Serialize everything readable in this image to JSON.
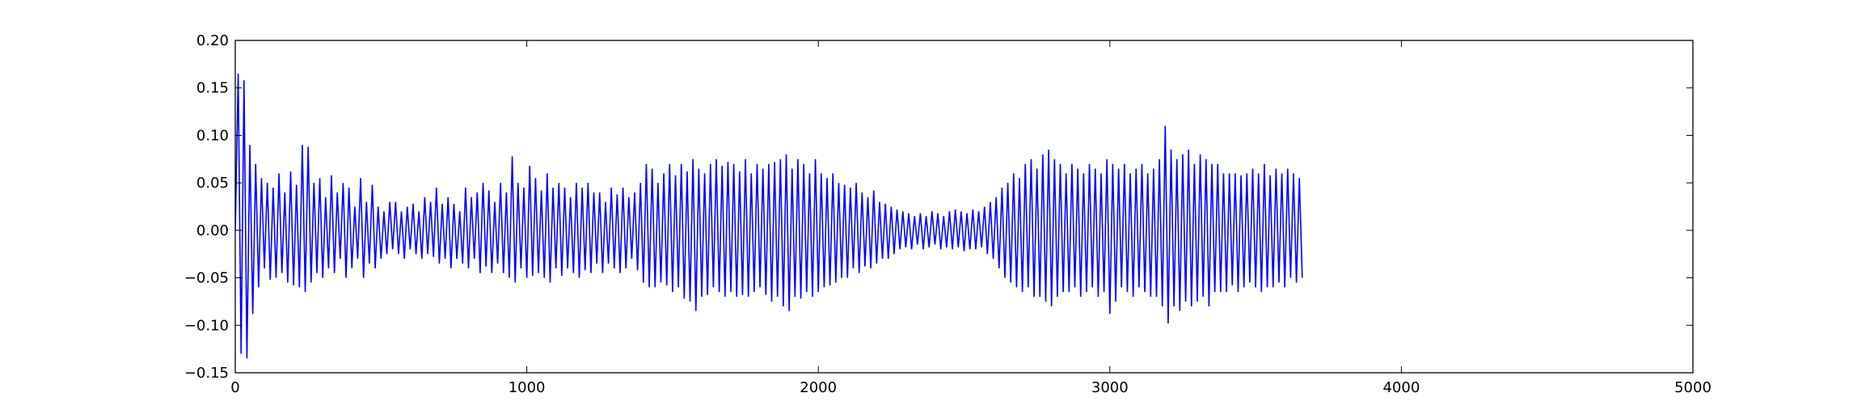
{
  "chart_data": {
    "type": "line",
    "title": "",
    "xlabel": "",
    "ylabel": "",
    "xlim": [
      0,
      5000
    ],
    "ylim": [
      -0.15,
      0.2
    ],
    "grid": false,
    "legend": "none",
    "x_ticks": [
      {
        "value": 0,
        "label": "0"
      },
      {
        "value": 1000,
        "label": "1000"
      },
      {
        "value": 2000,
        "label": "2000"
      },
      {
        "value": 3000,
        "label": "3000"
      },
      {
        "value": 4000,
        "label": "4000"
      },
      {
        "value": 5000,
        "label": "5000"
      }
    ],
    "y_ticks": [
      {
        "value": -0.15,
        "label": "−0.15"
      },
      {
        "value": -0.1,
        "label": "−0.10"
      },
      {
        "value": -0.05,
        "label": "−0.05"
      },
      {
        "value": 0.0,
        "label": "0.00"
      },
      {
        "value": 0.05,
        "label": "0.05"
      },
      {
        "value": 0.1,
        "label": "0.10"
      },
      {
        "value": 0.15,
        "label": "0.15"
      },
      {
        "value": 0.2,
        "label": "0.20"
      }
    ],
    "series": [
      {
        "color": "#0000ff",
        "sample_spacing": 10,
        "x_start": 0,
        "values": [
          0.0,
          0.165,
          -0.13,
          0.158,
          -0.135,
          0.09,
          -0.088,
          0.07,
          -0.06,
          0.055,
          -0.04,
          0.05,
          -0.052,
          0.045,
          -0.05,
          0.06,
          -0.045,
          0.04,
          -0.055,
          0.062,
          -0.058,
          0.048,
          -0.06,
          0.09,
          -0.065,
          0.088,
          -0.055,
          0.05,
          -0.045,
          0.055,
          -0.05,
          0.035,
          -0.04,
          0.058,
          -0.045,
          0.04,
          -0.03,
          0.05,
          -0.05,
          0.045,
          -0.04,
          0.025,
          -0.03,
          0.055,
          -0.05,
          0.03,
          -0.035,
          0.048,
          -0.04,
          0.025,
          -0.03,
          0.02,
          -0.025,
          0.03,
          -0.02,
          0.03,
          -0.025,
          0.02,
          -0.03,
          0.025,
          -0.02,
          0.028,
          -0.025,
          0.02,
          -0.03,
          0.035,
          -0.025,
          0.03,
          -0.028,
          0.045,
          -0.035,
          0.028,
          -0.03,
          0.035,
          -0.04,
          0.028,
          -0.03,
          0.02,
          -0.035,
          0.045,
          -0.04,
          0.035,
          -0.03,
          0.04,
          -0.045,
          0.05,
          -0.038,
          0.042,
          -0.045,
          0.03,
          -0.035,
          0.05,
          -0.045,
          0.04,
          -0.05,
          0.078,
          -0.055,
          0.05,
          -0.04,
          0.045,
          -0.05,
          0.068,
          -0.048,
          0.055,
          -0.045,
          0.042,
          -0.05,
          0.06,
          -0.055,
          0.045,
          -0.04,
          0.05,
          -0.048,
          0.045,
          -0.04,
          0.035,
          -0.045,
          0.05,
          -0.05,
          0.045,
          -0.042,
          0.05,
          -0.045,
          0.04,
          -0.035,
          0.04,
          -0.045,
          0.03,
          -0.035,
          0.045,
          -0.04,
          0.038,
          -0.045,
          0.045,
          -0.04,
          0.035,
          -0.03,
          0.04,
          -0.042,
          0.05,
          -0.055,
          0.07,
          -0.06,
          0.065,
          -0.06,
          0.05,
          -0.055,
          0.06,
          -0.058,
          0.07,
          -0.065,
          0.058,
          -0.06,
          0.07,
          -0.072,
          0.062,
          -0.075,
          0.075,
          -0.085,
          0.065,
          -0.07,
          0.06,
          -0.068,
          0.07,
          -0.06,
          0.075,
          -0.065,
          0.068,
          -0.07,
          0.072,
          -0.065,
          0.07,
          -0.07,
          0.062,
          -0.068,
          0.075,
          -0.07,
          0.06,
          -0.065,
          0.07,
          -0.06,
          0.065,
          -0.068,
          0.07,
          -0.075,
          0.072,
          -0.07,
          0.075,
          -0.08,
          0.08,
          -0.085,
          0.065,
          -0.07,
          0.075,
          -0.072,
          0.07,
          -0.065,
          0.06,
          -0.07,
          0.075,
          -0.065,
          0.06,
          -0.06,
          0.055,
          -0.058,
          0.06,
          -0.055,
          0.05,
          -0.05,
          0.048,
          -0.05,
          0.045,
          -0.04,
          0.05,
          -0.045,
          0.04,
          -0.038,
          0.035,
          -0.04,
          0.042,
          -0.035,
          0.03,
          -0.03,
          0.028,
          -0.03,
          0.025,
          -0.025,
          0.022,
          -0.02,
          0.02,
          -0.018,
          0.018,
          -0.02,
          0.015,
          -0.015,
          0.018,
          -0.02,
          0.015,
          -0.018,
          0.02,
          -0.015,
          0.018,
          -0.02,
          0.015,
          -0.018,
          0.02,
          -0.02,
          0.022,
          -0.018,
          0.02,
          -0.022,
          0.018,
          -0.02,
          0.022,
          -0.02,
          0.02,
          -0.018,
          0.025,
          -0.025,
          0.03,
          -0.03,
          0.035,
          -0.04,
          0.045,
          -0.05,
          0.05,
          -0.055,
          0.06,
          -0.06,
          0.055,
          -0.065,
          0.07,
          -0.06,
          0.075,
          -0.07,
          0.065,
          -0.07,
          0.08,
          -0.075,
          0.085,
          -0.08,
          0.075,
          -0.07,
          0.07,
          -0.065,
          0.06,
          -0.065,
          0.07,
          -0.06,
          0.065,
          -0.07,
          0.06,
          -0.065,
          0.07,
          -0.06,
          0.065,
          -0.07,
          0.06,
          -0.065,
          0.075,
          -0.088,
          0.07,
          -0.075,
          0.065,
          -0.06,
          0.07,
          -0.065,
          0.06,
          -0.07,
          0.065,
          -0.06,
          0.07,
          -0.065,
          0.06,
          -0.07,
          0.065,
          -0.07,
          0.075,
          -0.08,
          0.11,
          -0.098,
          0.085,
          -0.08,
          0.075,
          -0.085,
          0.08,
          -0.075,
          0.085,
          -0.08,
          0.07,
          -0.075,
          0.08,
          -0.07,
          0.075,
          -0.08,
          0.07,
          -0.065,
          0.07,
          -0.065,
          0.06,
          -0.065,
          0.06,
          -0.058,
          0.06,
          -0.065,
          0.058,
          -0.06,
          0.06,
          -0.055,
          0.065,
          -0.06,
          0.06,
          -0.065,
          0.07,
          -0.06,
          0.058,
          -0.06,
          0.065,
          -0.055,
          0.06,
          -0.06,
          0.065,
          -0.05,
          0.06,
          -0.055,
          0.055,
          -0.05
        ]
      }
    ]
  }
}
